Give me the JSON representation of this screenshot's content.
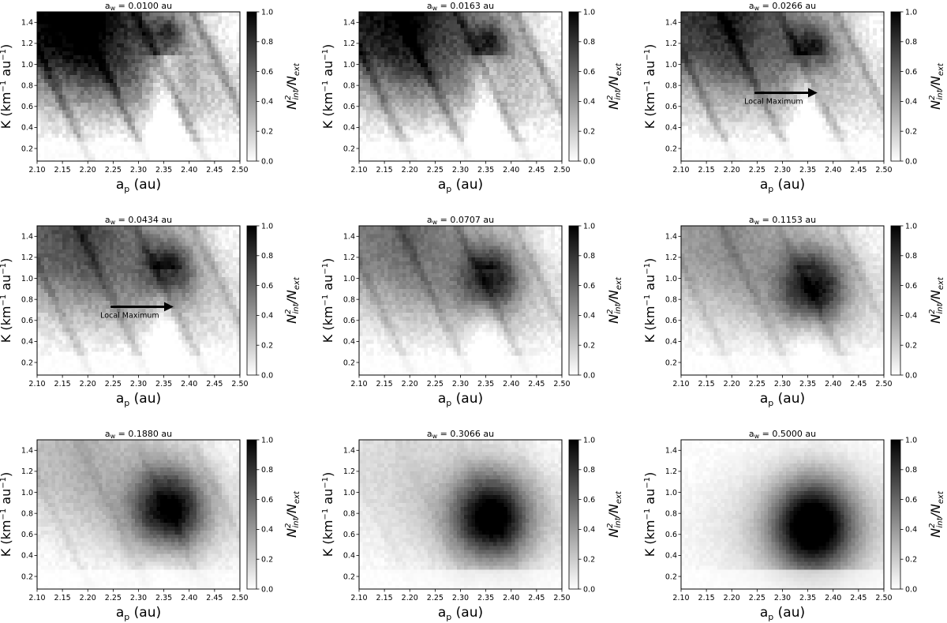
{
  "chart_data": {
    "type": "heatmap",
    "xlabel": "a_p (au)",
    "ylabel": "K (km⁻¹ au⁻¹)",
    "colorbar_label": "N_int^2/N_ext",
    "colormap": [
      "#ffffff",
      "#000000"
    ],
    "xlim": [
      2.1,
      2.5
    ],
    "ylim": [
      0.08,
      1.5
    ],
    "clim": [
      0.0,
      1.0
    ],
    "xticks": [
      "2.10",
      "2.15",
      "2.20",
      "2.25",
      "2.30",
      "2.35",
      "2.40",
      "2.45",
      "2.50"
    ],
    "xtick_values": [
      2.1,
      2.15,
      2.2,
      2.25,
      2.3,
      2.35,
      2.4,
      2.45,
      2.5
    ],
    "yticks": [
      "0.2",
      "0.4",
      "0.6",
      "0.8",
      "1.0",
      "1.2",
      "1.4"
    ],
    "ytick_values": [
      0.2,
      0.4,
      0.6,
      0.8,
      1.0,
      1.2,
      1.4
    ],
    "cbar_ticks": [
      "0.0",
      "0.2",
      "0.4",
      "0.6",
      "0.8",
      "1.0"
    ],
    "cbar_tick_values": [
      0.0,
      0.2,
      0.4,
      0.6,
      0.8,
      1.0
    ],
    "grid": false,
    "panels": [
      {
        "title": "a_w = 0.0100 au",
        "aw": 0.01,
        "sub": "w",
        "prefix": "a",
        "suffix": " = 0.0100 au",
        "annotation": null
      },
      {
        "title": "a_w = 0.0163 au",
        "aw": 0.0163,
        "sub": "w",
        "prefix": "a",
        "suffix": " = 0.0163 au",
        "annotation": null
      },
      {
        "title": "a_w = 0.0266 au",
        "aw": 0.0266,
        "sub": "w",
        "prefix": "a",
        "suffix": " = 0.0266 au",
        "annotation": {
          "text": "Local Maximum",
          "arrow_from": [
            2.245,
            0.73
          ],
          "arrow_to": [
            2.37,
            0.73
          ]
        }
      },
      {
        "title": "a_w = 0.0434 au",
        "aw": 0.0434,
        "sub": "w",
        "prefix": "a",
        "suffix": " = 0.0434 au",
        "annotation": {
          "text": "Local Maximum",
          "arrow_from": [
            2.245,
            0.73
          ],
          "arrow_to": [
            2.37,
            0.73
          ]
        }
      },
      {
        "title": "a_w = 0.0707 au",
        "aw": 0.0707,
        "sub": "w",
        "prefix": "a",
        "suffix": " = 0.0707 au",
        "annotation": null
      },
      {
        "title": "a_w = 0.1153 au",
        "aw": 0.1153,
        "sub": "w",
        "prefix": "a",
        "suffix": " = 0.1153 au",
        "annotation": null
      },
      {
        "title": "a_w = 0.1880 au",
        "aw": 0.188,
        "sub": "w",
        "prefix": "a",
        "suffix": " = 0.1880 au",
        "annotation": null
      },
      {
        "title": "a_w = 0.3066 au",
        "aw": 0.3066,
        "sub": "w",
        "prefix": "a",
        "suffix": " = 0.3066 au",
        "annotation": null
      },
      {
        "title": "a_w = 0.5000 au",
        "aw": 0.5,
        "sub": "w",
        "prefix": "a",
        "suffix": " = 0.5000 au",
        "annotation": null
      }
    ]
  }
}
